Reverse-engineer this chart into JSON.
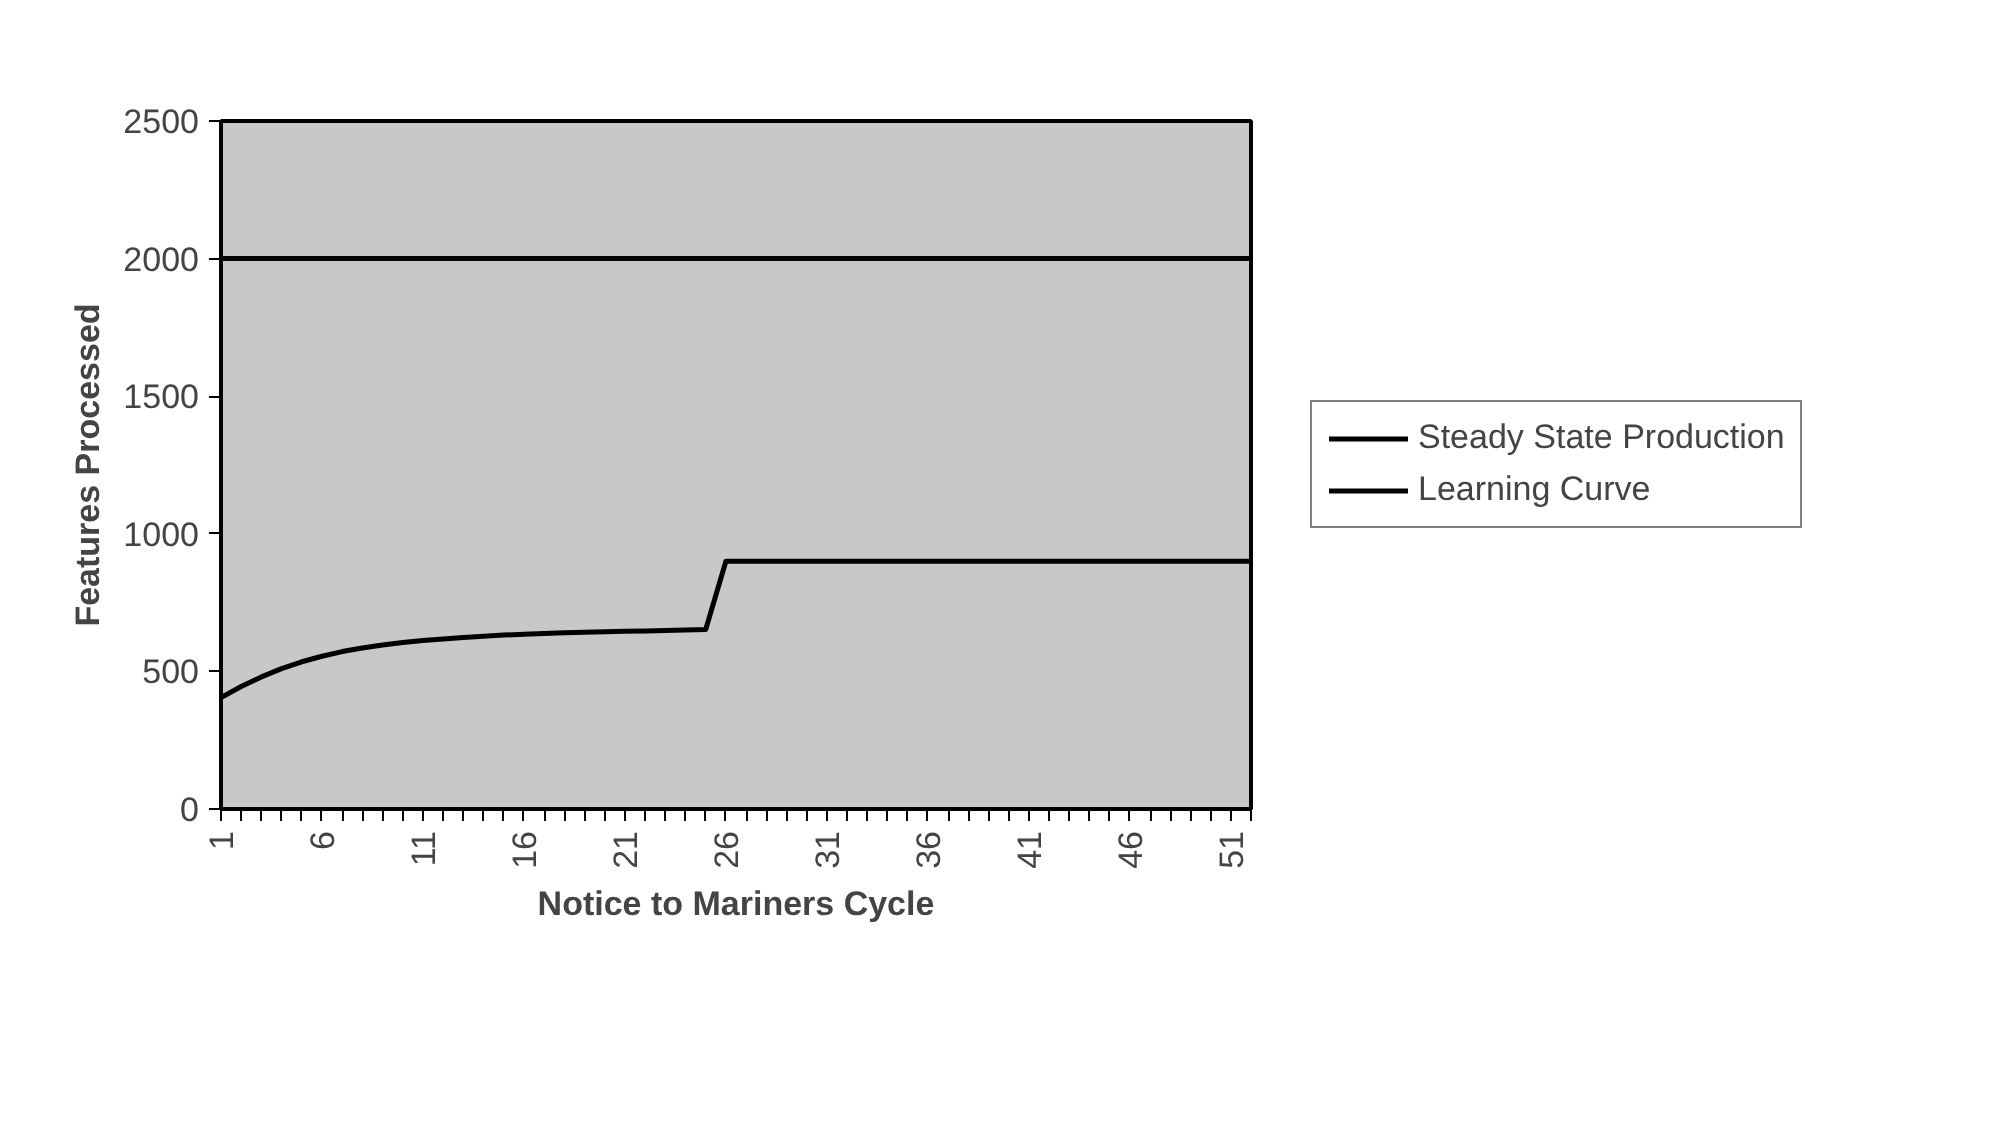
{
  "chart_data": {
    "type": "line",
    "xlabel": "Notice to Mariners Cycle",
    "ylabel": "Features Processed",
    "x": [
      1,
      2,
      3,
      4,
      5,
      6,
      7,
      8,
      9,
      10,
      11,
      12,
      13,
      14,
      15,
      16,
      17,
      18,
      19,
      20,
      21,
      22,
      23,
      24,
      25,
      26,
      27,
      28,
      29,
      30,
      31,
      32,
      33,
      34,
      35,
      36,
      37,
      38,
      39,
      40,
      41,
      42,
      43,
      44,
      45,
      46,
      47,
      48,
      49,
      50,
      51,
      52
    ],
    "series": [
      {
        "name": "Steady State Production",
        "color": "#000000",
        "values": [
          2000,
          2000,
          2000,
          2000,
          2000,
          2000,
          2000,
          2000,
          2000,
          2000,
          2000,
          2000,
          2000,
          2000,
          2000,
          2000,
          2000,
          2000,
          2000,
          2000,
          2000,
          2000,
          2000,
          2000,
          2000,
          2000,
          2000,
          2000,
          2000,
          2000,
          2000,
          2000,
          2000,
          2000,
          2000,
          2000,
          2000,
          2000,
          2000,
          2000,
          2000,
          2000,
          2000,
          2000,
          2000,
          2000,
          2000,
          2000,
          2000,
          2000,
          2000,
          2000
        ]
      },
      {
        "name": "Learning Curve",
        "color": "#000000",
        "values": [
          405,
          445,
          480,
          510,
          535,
          555,
          572,
          585,
          596,
          605,
          612,
          618,
          623,
          628,
          632,
          635,
          638,
          640,
          642,
          644,
          646,
          647,
          649,
          650,
          652,
          900,
          900,
          900,
          900,
          900,
          900,
          900,
          900,
          900,
          900,
          900,
          900,
          900,
          900,
          900,
          900,
          900,
          900,
          900,
          900,
          900,
          900,
          900,
          900,
          900,
          900,
          900
        ]
      }
    ],
    "xlim": [
      1,
      52
    ],
    "xticks": [
      1,
      {
        "value": 2,
        "label": null
      },
      {
        "value": 3,
        "label": null
      },
      {
        "value": 4,
        "label": null
      },
      {
        "value": 5,
        "label": null
      },
      6,
      {
        "value": 7,
        "label": null
      },
      {
        "value": 8,
        "label": null
      },
      {
        "value": 9,
        "label": null
      },
      {
        "value": 10,
        "label": null
      },
      11,
      {
        "value": 12,
        "label": null
      },
      {
        "value": 13,
        "label": null
      },
      {
        "value": 14,
        "label": null
      },
      {
        "value": 15,
        "label": null
      },
      16,
      {
        "value": 17,
        "label": null
      },
      {
        "value": 18,
        "label": null
      },
      {
        "value": 19,
        "label": null
      },
      {
        "value": 20,
        "label": null
      },
      21,
      {
        "value": 22,
        "label": null
      },
      {
        "value": 23,
        "label": null
      },
      {
        "value": 24,
        "label": null
      },
      {
        "value": 25,
        "label": null
      },
      26,
      {
        "value": 27,
        "label": null
      },
      {
        "value": 28,
        "label": null
      },
      {
        "value": 29,
        "label": null
      },
      {
        "value": 30,
        "label": null
      },
      31,
      {
        "value": 32,
        "label": null
      },
      {
        "value": 33,
        "label": null
      },
      {
        "value": 34,
        "label": null
      },
      {
        "value": 35,
        "label": null
      },
      36,
      {
        "value": 37,
        "label": null
      },
      {
        "value": 38,
        "label": null
      },
      {
        "value": 39,
        "label": null
      },
      {
        "value": 40,
        "label": null
      },
      41,
      {
        "value": 42,
        "label": null
      },
      {
        "value": 43,
        "label": null
      },
      {
        "value": 44,
        "label": null
      },
      {
        "value": 45,
        "label": null
      },
      46,
      {
        "value": 47,
        "label": null
      },
      {
        "value": 48,
        "label": null
      },
      {
        "value": 49,
        "label": null
      },
      {
        "value": 50,
        "label": null
      },
      51,
      {
        "value": 52,
        "label": null
      }
    ],
    "ylim": [
      0,
      2500
    ],
    "yticks": [
      0,
      500,
      1000,
      1500,
      2000,
      2500
    ],
    "grid": false,
    "legend": "right",
    "marker": "none",
    "line_style": "solid"
  }
}
